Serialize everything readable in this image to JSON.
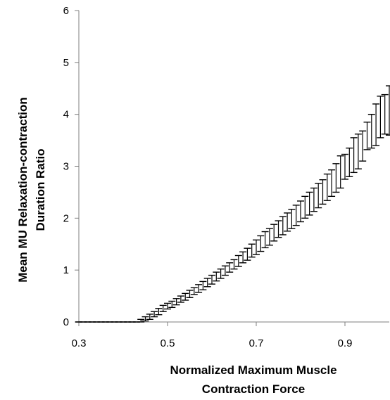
{
  "chart_data": {
    "type": "line",
    "title": "",
    "xlabel_lines": [
      "Normalized Maximum Muscle",
      "Contraction Force"
    ],
    "ylabel_lines": [
      "Mean MU Relaxation-contraction",
      "Duration Ratio"
    ],
    "xlim": [
      0.3,
      1.0
    ],
    "ylim": [
      0,
      6
    ],
    "x_ticks": [
      0.3,
      0.5,
      0.7,
      0.9
    ],
    "x_tick_labels": [
      "0.3",
      "0.5",
      "0.7",
      "0.9"
    ],
    "y_ticks": [
      0,
      1,
      2,
      3,
      4,
      5,
      6
    ],
    "y_tick_labels": [
      "0",
      "1",
      "2",
      "3",
      "4",
      "5",
      "6"
    ],
    "grid": false,
    "legend": "none",
    "error_bars": "vertical error bars with horizontal caps",
    "x": [
      0.3,
      0.31,
      0.32,
      0.33,
      0.34,
      0.35,
      0.36,
      0.37,
      0.38,
      0.39,
      0.4,
      0.41,
      0.42,
      0.43,
      0.44,
      0.45,
      0.46,
      0.47,
      0.48,
      0.49,
      0.5,
      0.51,
      0.52,
      0.53,
      0.54,
      0.55,
      0.56,
      0.57,
      0.58,
      0.59,
      0.6,
      0.61,
      0.62,
      0.63,
      0.64,
      0.65,
      0.66,
      0.67,
      0.68,
      0.69,
      0.7,
      0.71,
      0.72,
      0.73,
      0.74,
      0.75,
      0.76,
      0.77,
      0.78,
      0.79,
      0.8,
      0.81,
      0.82,
      0.83,
      0.84,
      0.85,
      0.86,
      0.87,
      0.88,
      0.89,
      0.9,
      0.91,
      0.92,
      0.93,
      0.94,
      0.95,
      0.96,
      0.97,
      0.98,
      0.99,
      1.0
    ],
    "y_upper": [
      0,
      0,
      0,
      0,
      0,
      0,
      0,
      0,
      0,
      0,
      0,
      0,
      0,
      0,
      0.05,
      0.1,
      0.15,
      0.2,
      0.26,
      0.32,
      0.36,
      0.4,
      0.45,
      0.5,
      0.55,
      0.61,
      0.66,
      0.72,
      0.78,
      0.84,
      0.9,
      0.96,
      1.02,
      1.08,
      1.14,
      1.2,
      1.28,
      1.35,
      1.42,
      1.5,
      1.58,
      1.66,
      1.74,
      1.8,
      1.88,
      1.95,
      2.03,
      2.1,
      2.17,
      2.25,
      2.33,
      2.42,
      2.5,
      2.58,
      2.67,
      2.74,
      2.85,
      2.93,
      3.05,
      3.2,
      3.23,
      3.35,
      3.55,
      3.62,
      3.68,
      3.85,
      4.0,
      4.2,
      4.35,
      4.38,
      4.55
    ],
    "y_lower": [
      0,
      0,
      0,
      0,
      0,
      0,
      0,
      0,
      0,
      0,
      0,
      0,
      0,
      0,
      0,
      0.02,
      0.05,
      0.1,
      0.14,
      0.2,
      0.25,
      0.28,
      0.33,
      0.38,
      0.42,
      0.47,
      0.53,
      0.57,
      0.62,
      0.68,
      0.73,
      0.79,
      0.84,
      0.9,
      0.96,
      1.02,
      1.07,
      1.14,
      1.19,
      1.25,
      1.3,
      1.36,
      1.43,
      1.48,
      1.56,
      1.63,
      1.68,
      1.75,
      1.8,
      1.86,
      1.93,
      2.0,
      2.06,
      2.13,
      2.2,
      2.27,
      2.34,
      2.42,
      2.5,
      2.58,
      2.75,
      2.8,
      2.88,
      2.95,
      3.1,
      3.32,
      3.35,
      3.4,
      3.55,
      3.62,
      3.6
    ]
  }
}
